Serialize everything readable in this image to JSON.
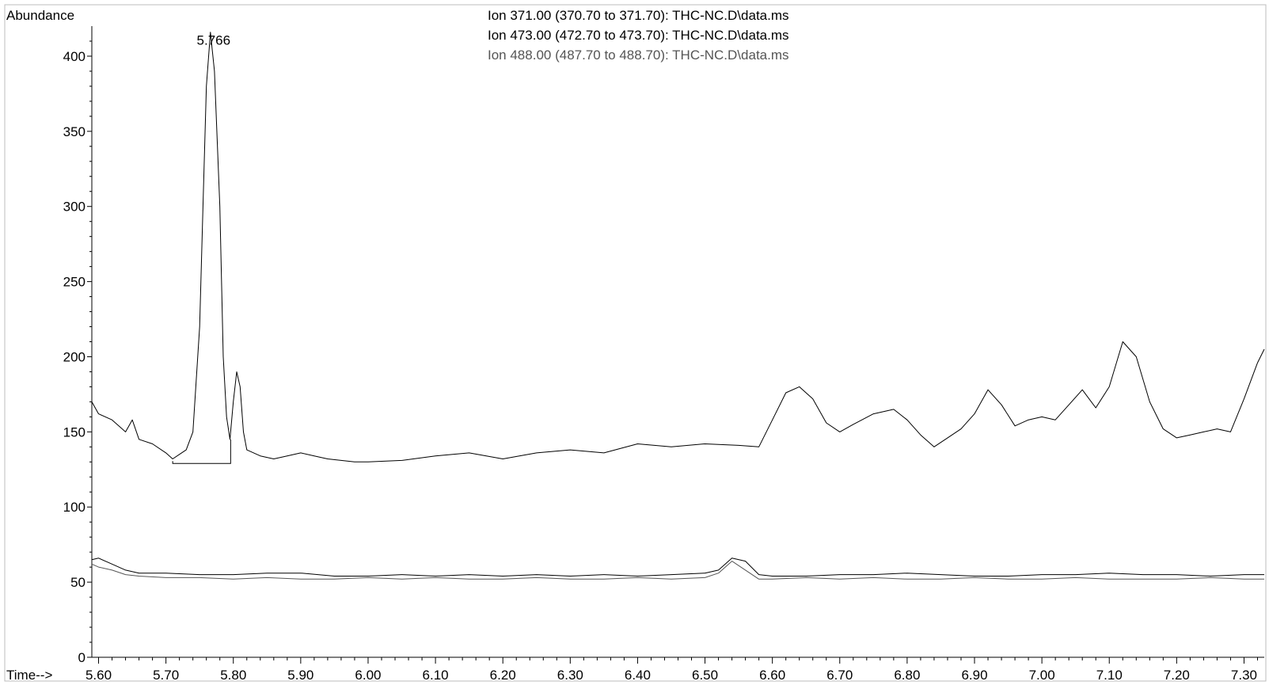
{
  "chart_data": {
    "type": "line",
    "title": "",
    "ylabel": "Abundance",
    "xlabel": "Time-->",
    "xlim": [
      5.59,
      7.33
    ],
    "ylim": [
      0,
      420
    ],
    "x_ticks": [
      "5.60",
      "5.70",
      "5.80",
      "5.90",
      "6.00",
      "6.10",
      "6.20",
      "6.30",
      "6.40",
      "6.50",
      "6.60",
      "6.70",
      "6.80",
      "6.90",
      "7.00",
      "7.10",
      "7.20",
      "7.30"
    ],
    "y_ticks": [
      "0",
      "50",
      "100",
      "150",
      "200",
      "250",
      "300",
      "350",
      "400"
    ],
    "legend": [
      {
        "text": "Ion 371.00 (370.70 to 371.70): THC-NC.D\\data.ms",
        "color": "#000000"
      },
      {
        "text": "Ion 473.00 (472.70 to 473.70): THC-NC.D\\data.ms",
        "color": "#000000"
      },
      {
        "text": "Ion 488.00 (487.70 to 488.70): THC-NC.D\\data.ms",
        "color": "#555555"
      }
    ],
    "peak_label": {
      "text": "5.766",
      "x": 5.766,
      "y": 416
    },
    "baseline_segment": {
      "x": [
        5.71,
        5.796
      ],
      "y": 129
    },
    "series": [
      {
        "name": "Ion 371.00 (370.70 to 371.70): THC-NC.D\\data.ms",
        "color": "#000000",
        "points": [
          [
            5.59,
            170
          ],
          [
            5.6,
            162
          ],
          [
            5.62,
            158
          ],
          [
            5.64,
            150
          ],
          [
            5.65,
            158
          ],
          [
            5.66,
            145
          ],
          [
            5.68,
            142
          ],
          [
            5.7,
            136
          ],
          [
            5.71,
            132
          ],
          [
            5.72,
            135
          ],
          [
            5.73,
            138
          ],
          [
            5.74,
            150
          ],
          [
            5.75,
            220
          ],
          [
            5.755,
            300
          ],
          [
            5.76,
            380
          ],
          [
            5.766,
            416
          ],
          [
            5.772,
            390
          ],
          [
            5.78,
            300
          ],
          [
            5.785,
            200
          ],
          [
            5.79,
            160
          ],
          [
            5.795,
            145
          ],
          [
            5.8,
            170
          ],
          [
            5.805,
            190
          ],
          [
            5.81,
            180
          ],
          [
            5.815,
            150
          ],
          [
            5.82,
            138
          ],
          [
            5.84,
            134
          ],
          [
            5.86,
            132
          ],
          [
            5.88,
            134
          ],
          [
            5.9,
            136
          ],
          [
            5.92,
            134
          ],
          [
            5.94,
            132
          ],
          [
            5.96,
            131
          ],
          [
            5.98,
            130
          ],
          [
            6.0,
            130
          ],
          [
            6.05,
            131
          ],
          [
            6.1,
            134
          ],
          [
            6.15,
            136
          ],
          [
            6.2,
            132
          ],
          [
            6.25,
            136
          ],
          [
            6.3,
            138
          ],
          [
            6.35,
            136
          ],
          [
            6.4,
            142
          ],
          [
            6.45,
            140
          ],
          [
            6.5,
            142
          ],
          [
            6.55,
            141
          ],
          [
            6.58,
            140
          ],
          [
            6.6,
            158
          ],
          [
            6.62,
            176
          ],
          [
            6.64,
            180
          ],
          [
            6.66,
            172
          ],
          [
            6.68,
            156
          ],
          [
            6.7,
            150
          ],
          [
            6.72,
            155
          ],
          [
            6.75,
            162
          ],
          [
            6.78,
            165
          ],
          [
            6.8,
            158
          ],
          [
            6.82,
            148
          ],
          [
            6.84,
            140
          ],
          [
            6.86,
            146
          ],
          [
            6.88,
            152
          ],
          [
            6.9,
            162
          ],
          [
            6.92,
            178
          ],
          [
            6.94,
            168
          ],
          [
            6.96,
            154
          ],
          [
            6.98,
            158
          ],
          [
            7.0,
            160
          ],
          [
            7.02,
            158
          ],
          [
            7.04,
            168
          ],
          [
            7.06,
            178
          ],
          [
            7.08,
            166
          ],
          [
            7.1,
            180
          ],
          [
            7.12,
            210
          ],
          [
            7.14,
            200
          ],
          [
            7.16,
            170
          ],
          [
            7.18,
            152
          ],
          [
            7.2,
            146
          ],
          [
            7.22,
            148
          ],
          [
            7.24,
            150
          ],
          [
            7.26,
            152
          ],
          [
            7.28,
            150
          ],
          [
            7.3,
            172
          ],
          [
            7.32,
            196
          ],
          [
            7.33,
            205
          ]
        ]
      },
      {
        "name": "Ion 473.00 (472.70 to 473.70): THC-NC.D\\data.ms",
        "color": "#000000",
        "points": [
          [
            5.59,
            65
          ],
          [
            5.6,
            66
          ],
          [
            5.62,
            62
          ],
          [
            5.64,
            58
          ],
          [
            5.66,
            56
          ],
          [
            5.7,
            56
          ],
          [
            5.75,
            55
          ],
          [
            5.8,
            55
          ],
          [
            5.85,
            56
          ],
          [
            5.9,
            56
          ],
          [
            5.95,
            54
          ],
          [
            6.0,
            54
          ],
          [
            6.05,
            55
          ],
          [
            6.1,
            54
          ],
          [
            6.15,
            55
          ],
          [
            6.2,
            54
          ],
          [
            6.25,
            55
          ],
          [
            6.3,
            54
          ],
          [
            6.35,
            55
          ],
          [
            6.4,
            54
          ],
          [
            6.45,
            55
          ],
          [
            6.5,
            56
          ],
          [
            6.52,
            58
          ],
          [
            6.54,
            66
          ],
          [
            6.56,
            64
          ],
          [
            6.58,
            55
          ],
          [
            6.6,
            54
          ],
          [
            6.65,
            54
          ],
          [
            6.7,
            55
          ],
          [
            6.75,
            55
          ],
          [
            6.8,
            56
          ],
          [
            6.85,
            55
          ],
          [
            6.9,
            54
          ],
          [
            6.95,
            54
          ],
          [
            7.0,
            55
          ],
          [
            7.05,
            55
          ],
          [
            7.1,
            56
          ],
          [
            7.15,
            55
          ],
          [
            7.2,
            55
          ],
          [
            7.25,
            54
          ],
          [
            7.3,
            55
          ],
          [
            7.33,
            55
          ]
        ]
      },
      {
        "name": "Ion 488.00 (487.70 to 488.70): THC-NC.D\\data.ms",
        "color": "#555555",
        "points": [
          [
            5.59,
            62
          ],
          [
            5.6,
            60
          ],
          [
            5.62,
            58
          ],
          [
            5.64,
            55
          ],
          [
            5.66,
            54
          ],
          [
            5.7,
            53
          ],
          [
            5.75,
            53
          ],
          [
            5.8,
            52
          ],
          [
            5.85,
            53
          ],
          [
            5.9,
            52
          ],
          [
            5.95,
            52
          ],
          [
            6.0,
            53
          ],
          [
            6.05,
            52
          ],
          [
            6.1,
            53
          ],
          [
            6.15,
            52
          ],
          [
            6.2,
            52
          ],
          [
            6.25,
            53
          ],
          [
            6.3,
            52
          ],
          [
            6.35,
            52
          ],
          [
            6.4,
            53
          ],
          [
            6.45,
            52
          ],
          [
            6.5,
            53
          ],
          [
            6.52,
            56
          ],
          [
            6.54,
            64
          ],
          [
            6.56,
            58
          ],
          [
            6.58,
            52
          ],
          [
            6.6,
            52
          ],
          [
            6.65,
            53
          ],
          [
            6.7,
            52
          ],
          [
            6.75,
            53
          ],
          [
            6.8,
            52
          ],
          [
            6.85,
            52
          ],
          [
            6.9,
            53
          ],
          [
            6.95,
            52
          ],
          [
            7.0,
            52
          ],
          [
            7.05,
            53
          ],
          [
            7.1,
            52
          ],
          [
            7.15,
            52
          ],
          [
            7.2,
            52
          ],
          [
            7.25,
            53
          ],
          [
            7.3,
            52
          ],
          [
            7.33,
            52
          ]
        ]
      }
    ]
  }
}
